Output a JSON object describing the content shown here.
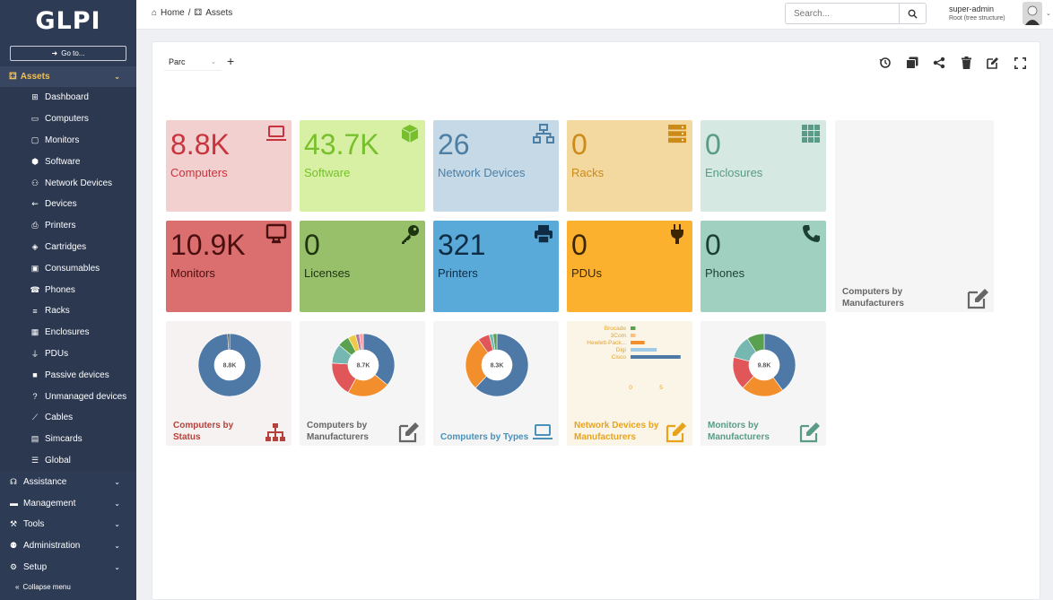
{
  "app": {
    "logo": "GLPI"
  },
  "sidebar": {
    "goto_label": "Go to...",
    "section": "Assets",
    "items": [
      {
        "label": "Dashboard",
        "icon": "dashboard-icon"
      },
      {
        "label": "Computers",
        "icon": "laptop-icon"
      },
      {
        "label": "Monitors",
        "icon": "monitor-icon"
      },
      {
        "label": "Software",
        "icon": "cube-icon"
      },
      {
        "label": "Network Devices",
        "icon": "network-icon"
      },
      {
        "label": "Devices",
        "icon": "usb-icon"
      },
      {
        "label": "Printers",
        "icon": "printer-icon"
      },
      {
        "label": "Cartridges",
        "icon": "fill-drip-icon"
      },
      {
        "label": "Consumables",
        "icon": "box-open-icon"
      },
      {
        "label": "Phones",
        "icon": "phone-icon"
      },
      {
        "label": "Racks",
        "icon": "server-icon"
      },
      {
        "label": "Enclosures",
        "icon": "grid-icon"
      },
      {
        "label": "PDUs",
        "icon": "plug-icon"
      },
      {
        "label": "Passive devices",
        "icon": "square-icon"
      },
      {
        "label": "Unmanaged devices",
        "icon": "question-icon"
      },
      {
        "label": "Cables",
        "icon": "cable-icon"
      },
      {
        "label": "Simcards",
        "icon": "sim-card-icon"
      },
      {
        "label": "Global",
        "icon": "list-icon"
      }
    ],
    "sections": [
      {
        "label": "Assistance",
        "icon": "headset-icon"
      },
      {
        "label": "Management",
        "icon": "wallet-icon"
      },
      {
        "label": "Tools",
        "icon": "toolbox-icon"
      },
      {
        "label": "Administration",
        "icon": "users-cog-icon"
      },
      {
        "label": "Setup",
        "icon": "cogs-icon"
      }
    ],
    "collapse_label": "Collapse menu"
  },
  "header": {
    "breadcrumb_home": "Home",
    "breadcrumb_current": "Assets",
    "search_placeholder": "Search...",
    "user_name": "super-admin",
    "user_entity": "Root (tree structure)"
  },
  "dashboard": {
    "selected": "Parc",
    "cards": [
      {
        "value": "8.8K",
        "label": "Computers",
        "color": "#f2d0d0",
        "fg": "#c8333d",
        "icon": "laptop-icon"
      },
      {
        "value": "43.7K",
        "label": "Software",
        "color": "#d8f0a4",
        "fg": "#77c02c",
        "icon": "cube-icon"
      },
      {
        "value": "26",
        "label": "Network Devices",
        "color": "#c5d9e6",
        "fg": "#4d7fa5",
        "icon": "network-icon"
      },
      {
        "value": "0",
        "label": "Racks",
        "color": "#f3d8a0",
        "fg": "#cc8a16",
        "icon": "server-icon"
      },
      {
        "value": "0",
        "label": "Enclosures",
        "color": "#d5e8e1",
        "fg": "#5a9b87",
        "icon": "grid-icon"
      },
      {
        "value": "10.9K",
        "label": "Monitors",
        "color": "#db6e6e",
        "fg": "#4a1010",
        "icon": "monitor-icon"
      },
      {
        "value": "0",
        "label": "Licenses",
        "color": "#98c06a",
        "fg": "#1e3310",
        "icon": "key-icon"
      },
      {
        "value": "321",
        "label": "Printers",
        "color": "#5aaad9",
        "fg": "#0e2c44",
        "icon": "printer-icon"
      },
      {
        "value": "0",
        "label": "PDUs",
        "color": "#fbb12e",
        "fg": "#3c2604",
        "icon": "plug-icon"
      },
      {
        "value": "0",
        "label": "Phones",
        "color": "#9fd0c0",
        "fg": "#1c3f35",
        "icon": "phone-icon"
      }
    ],
    "empty_card_label": "Computers by Manufacturers",
    "mini_cards": [
      {
        "label": "Computers by Status",
        "fg": "#b5413b",
        "center": "8.8K",
        "icon": "sitemap-icon"
      },
      {
        "label": "Computers by Manufacturers",
        "fg": "#666666",
        "center": "8.7K",
        "icon": "edit-icon"
      },
      {
        "label": "Computers by Types",
        "fg": "#4a90b8",
        "center": "8.3K",
        "icon": "laptop-icon"
      },
      {
        "label": "Network Devices by Manufacturers",
        "fg": "#e8a31c",
        "center": "",
        "icon": "edit-icon"
      },
      {
        "label": "Monitors by Manufacturers",
        "fg": "#5a9b87",
        "center": "9.8K",
        "icon": "edit-icon"
      }
    ]
  },
  "chart_data": [
    {
      "type": "pie",
      "title": "Computers by Status",
      "center_label": "8.8K",
      "values": [
        99,
        1
      ],
      "colors": [
        "#4e79a7",
        "#444444"
      ]
    },
    {
      "type": "pie",
      "title": "Computers by Manufacturers",
      "center_label": "8.7K",
      "values": [
        36,
        22,
        18,
        10,
        6,
        4,
        2,
        2
      ],
      "colors": [
        "#4e79a7",
        "#f28e2b",
        "#e15759",
        "#76b7b2",
        "#59a14f",
        "#edc948",
        "#b07aa1",
        "#ff9da7"
      ]
    },
    {
      "type": "pie",
      "title": "Computers by Types",
      "center_label": "8.3K",
      "values": [
        62,
        28,
        6,
        2,
        2
      ],
      "colors": [
        "#4e79a7",
        "#f28e2b",
        "#e15759",
        "#76b7b2",
        "#59a14f"
      ]
    },
    {
      "type": "bar",
      "title": "Network Devices by Manufacturers",
      "orientation": "horizontal",
      "categories": [
        "Brocade",
        "3Com",
        "Hewlett-Pack...",
        "Digi",
        "Cisco"
      ],
      "values": [
        0.8,
        0.8,
        2.3,
        4.3,
        8.2
      ],
      "colors": [
        "#59a14f",
        "#ffbe7d",
        "#f28e2b",
        "#a0cbe8",
        "#4e79a7"
      ],
      "xticks": [
        "0",
        "5"
      ]
    },
    {
      "type": "pie",
      "title": "Monitors by Manufacturers",
      "center_label": "9.8K",
      "values": [
        40,
        22,
        17,
        12,
        9
      ],
      "colors": [
        "#4e79a7",
        "#f28e2b",
        "#e15759",
        "#76b7b2",
        "#59a14f"
      ]
    }
  ]
}
